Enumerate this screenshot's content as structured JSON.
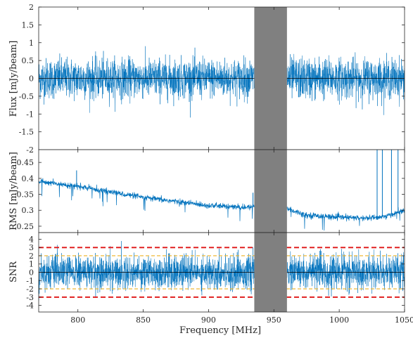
{
  "chart_data": [
    {
      "type": "line",
      "panel": "flux",
      "ylabel": "Flux [mJy/beam]",
      "xlim": [
        770,
        1050
      ],
      "ylim": [
        -2,
        2
      ],
      "yticks": [
        "2",
        "1.5",
        "1",
        "0.5",
        "0",
        "-0.5",
        "-1",
        "-1.5",
        "-2"
      ],
      "ytick_values": [
        2,
        1.5,
        1,
        0.5,
        0,
        -0.5,
        -1,
        -1.5,
        -2
      ],
      "series_color": "#0072bd",
      "noise": {
        "center": 0,
        "rms_envelope": [
          [
            770,
            0.28
          ],
          [
            935,
            0.27
          ],
          [
            960,
            0.29
          ],
          [
            1050,
            0.27
          ]
        ],
        "peak_abs": 1.4
      },
      "zero_line": 0
    },
    {
      "type": "line",
      "panel": "rms",
      "ylabel": "RMS [mJy/beam]",
      "xlim": [
        770,
        1050
      ],
      "ylim": [
        0.23,
        0.49
      ],
      "yticks": [
        "0.45",
        "0.4",
        "0.35",
        "0.3",
        "0.25"
      ],
      "ytick_values": [
        0.45,
        0.4,
        0.35,
        0.3,
        0.25
      ],
      "series_color": "#0072bd",
      "trend": [
        [
          770,
          0.39
        ],
        [
          800,
          0.375
        ],
        [
          850,
          0.34
        ],
        [
          900,
          0.315
        ],
        [
          930,
          0.308
        ],
        [
          935,
          0.315
        ],
        [
          960,
          0.305
        ],
        [
          975,
          0.285
        ],
        [
          1000,
          0.278
        ],
        [
          1020,
          0.275
        ],
        [
          1035,
          0.28
        ],
        [
          1050,
          0.3
        ]
      ],
      "spikes": [
        [
          799,
          0.425
        ],
        [
          934,
          0.355
        ],
        [
          1029,
          0.49
        ],
        [
          1033,
          0.49
        ],
        [
          1040,
          0.49
        ],
        [
          1045,
          0.49
        ]
      ]
    },
    {
      "type": "line",
      "panel": "snr",
      "ylabel": "SNR",
      "xlabel": "Frequency [MHz]",
      "xlim": [
        770,
        1050
      ],
      "ylim": [
        -4.8,
        4.8
      ],
      "xticks": [
        "800",
        "850",
        "900",
        "950",
        "1000",
        "1050"
      ],
      "xtick_values": [
        800,
        850,
        900,
        950,
        1000,
        1050
      ],
      "yticks": [
        "4",
        "3",
        "2",
        "1",
        "0",
        "-1",
        "-2",
        "-3",
        "-4"
      ],
      "ytick_values": [
        4,
        3,
        2,
        1,
        0,
        -1,
        -2,
        -3,
        -4
      ],
      "series_color": "#0072bd",
      "thresholds": [
        {
          "value": 3,
          "color": "#e02020",
          "style": "dashed"
        },
        {
          "value": -3,
          "color": "#e02020",
          "style": "dashed"
        },
        {
          "value": 2,
          "color": "#edb120",
          "style": "dashed"
        },
        {
          "value": -2,
          "color": "#edb120",
          "style": "dashed"
        }
      ],
      "noise": {
        "center": 0,
        "peak_abs": 4.3
      }
    }
  ],
  "masked_band": {
    "x": [
      935,
      960
    ],
    "color": "#808080"
  }
}
